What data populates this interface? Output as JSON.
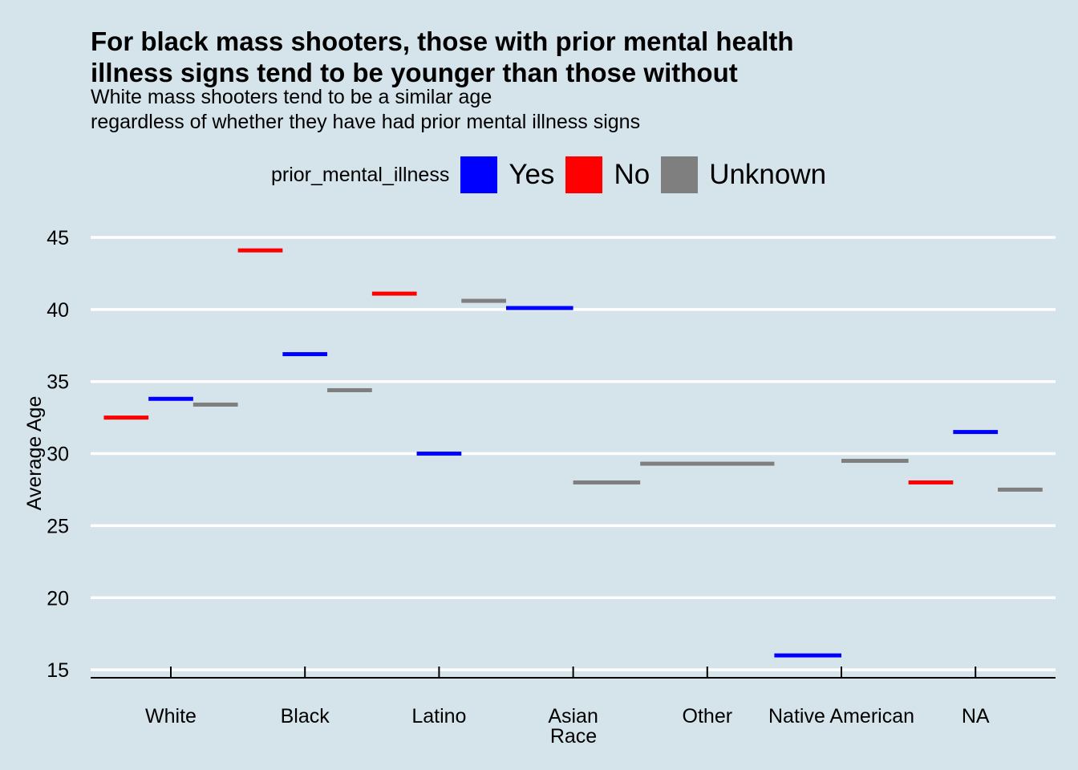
{
  "chart_data": {
    "type": "bar",
    "title_lines": [
      "For black mass shooters, those with prior mental health",
      "illness signs tend to be younger than those without"
    ],
    "subtitle_lines": [
      "White mass shooters tend to be a similar age",
      "regardless of whether they have had prior mental illness signs"
    ],
    "xlabel": "Race",
    "ylabel": "Average Age",
    "ylim": [
      14.6,
      45.3
    ],
    "yticks": [
      15,
      20,
      25,
      30,
      35,
      40,
      45
    ],
    "grid": true,
    "legend_position": "top",
    "legend_title": "prior_mental_illness",
    "categories": [
      "White",
      "Black",
      "Latino",
      "Asian",
      "Other",
      "Native American",
      "NA"
    ],
    "series": [
      {
        "name": "Yes",
        "color": "#0000ff",
        "values": [
          33.8,
          36.9,
          30.0,
          40.1,
          null,
          16.0,
          31.5
        ]
      },
      {
        "name": "No",
        "color": "#ff0000",
        "values": [
          32.5,
          44.1,
          41.1,
          null,
          null,
          null,
          28.0
        ]
      },
      {
        "name": "Unknown",
        "color": "#7f7f7f",
        "values": [
          33.4,
          34.4,
          40.6,
          28.0,
          29.3,
          29.5,
          27.5
        ]
      }
    ]
  }
}
